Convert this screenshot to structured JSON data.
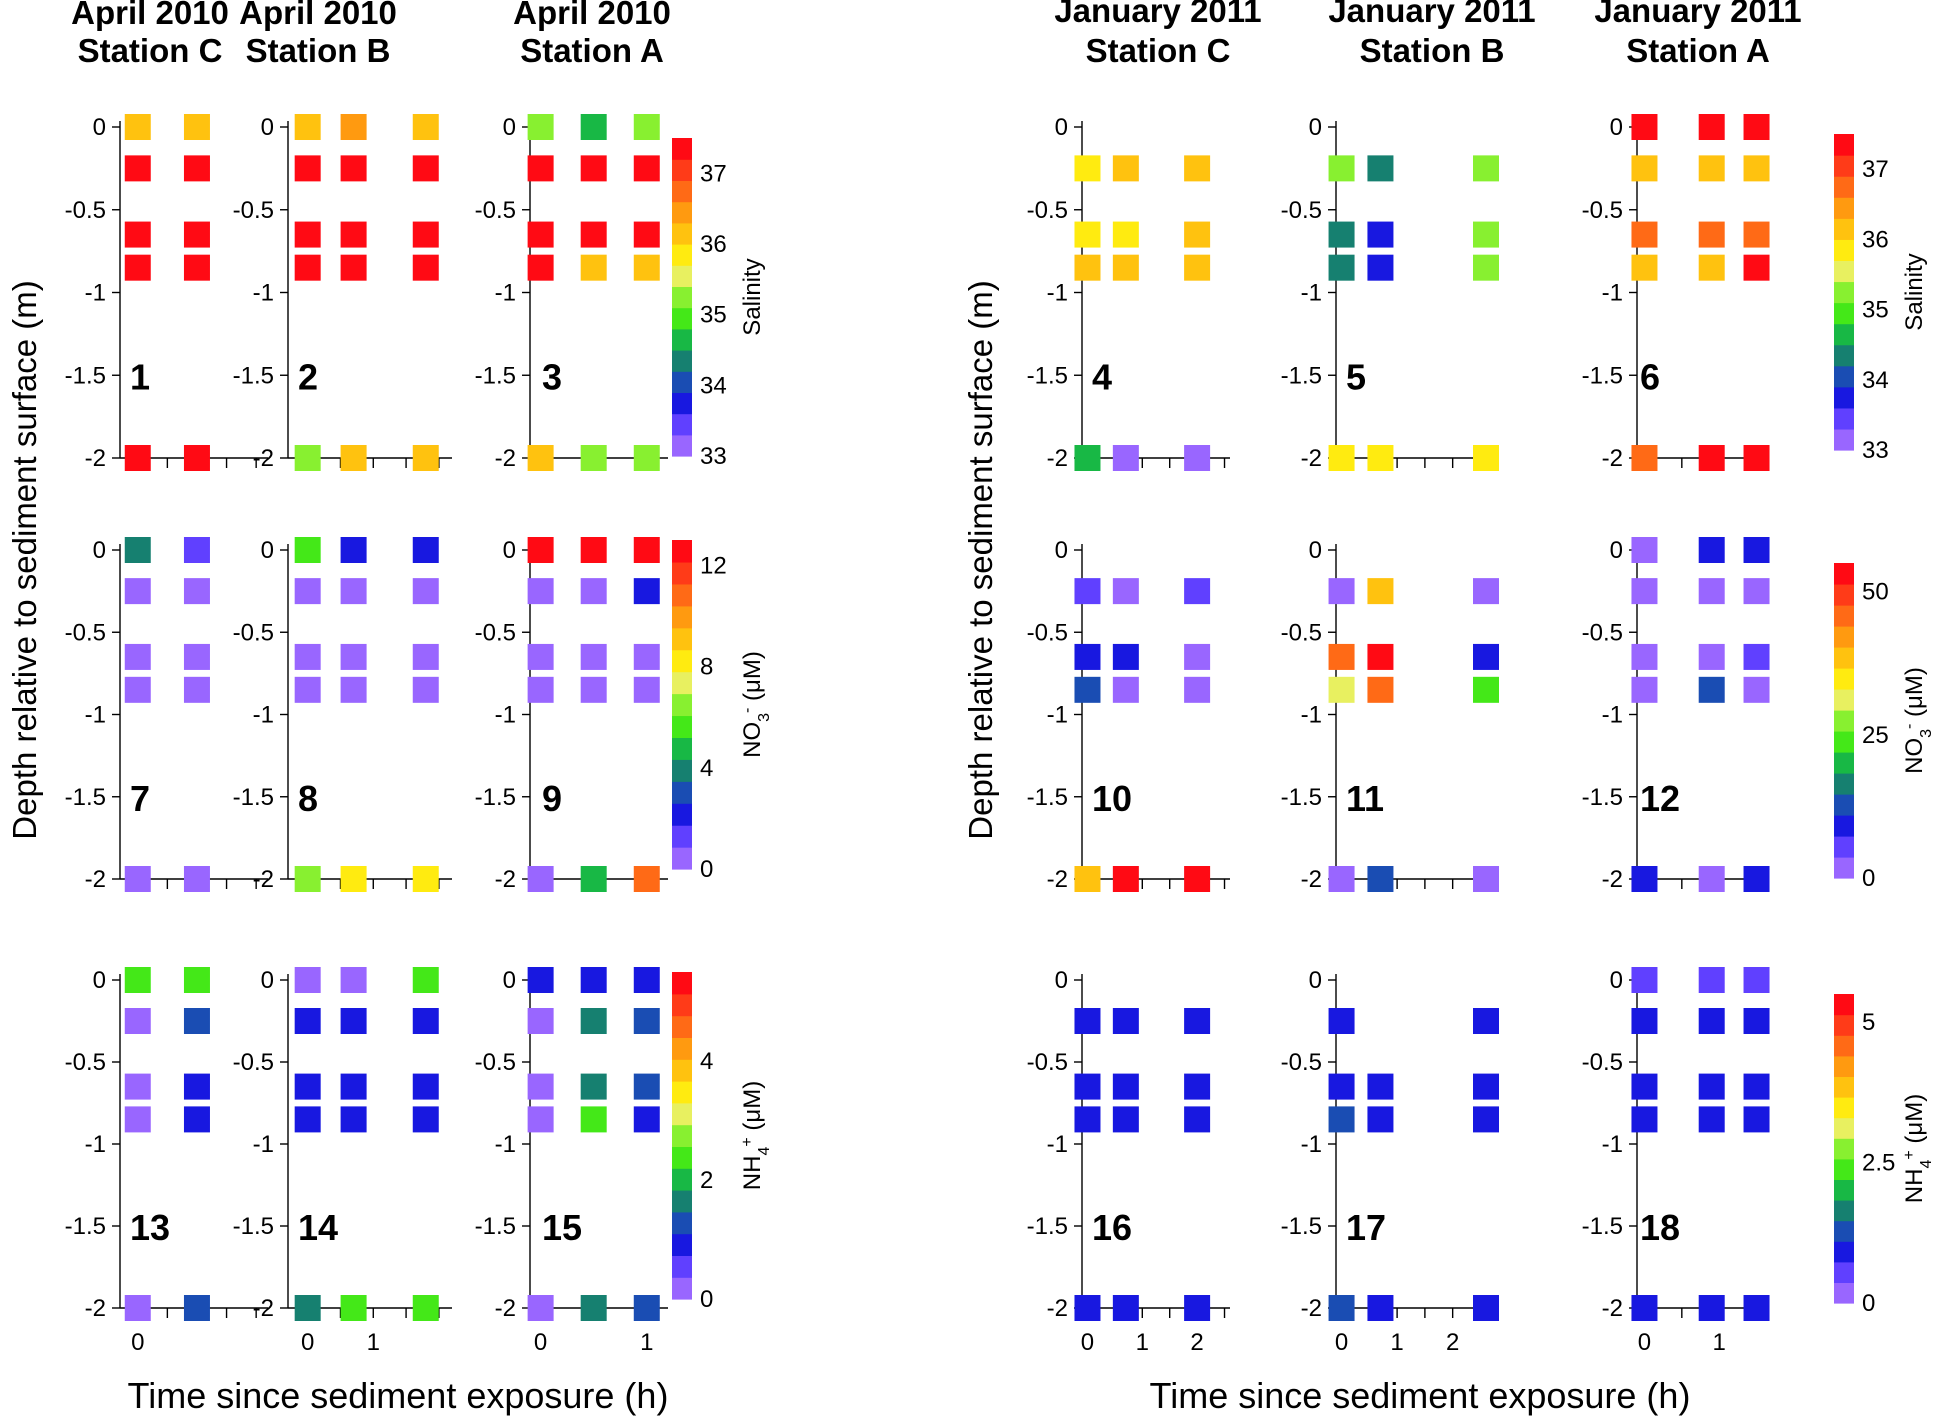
{
  "chart_data": {
    "type": "heatmap",
    "y_axis_label": "Depth relative to sediment surface (m)",
    "x_axis_label": "Time since sediment exposure (h)",
    "y_ticks": [
      "0",
      "-0.5",
      "-1",
      "-1.5",
      "-2"
    ],
    "depths": [
      0,
      -0.25,
      -0.65,
      -0.85,
      -2
    ],
    "ylim": [
      -2,
      0
    ],
    "groups": [
      {
        "id": "left",
        "x_axis_label": "Time since sediment exposure (h)",
        "columns": [
          {
            "title_line1": "April 2010",
            "title_line2": "Station C",
            "x_ticks": [
              "0"
            ],
            "xlim": [
              -0.3,
              2.2
            ]
          },
          {
            "title_line1": "April 2010",
            "title_line2": "Station B",
            "x_ticks": [
              "0",
              "1"
            ],
            "xlim": [
              -0.3,
              2.2
            ]
          },
          {
            "title_line1": "April 2010",
            "title_line2": "Station A",
            "x_ticks": [
              "0",
              "1"
            ],
            "xlim": [
              -0.1,
              1.2
            ]
          }
        ]
      },
      {
        "id": "right",
        "x_axis_label": "Time since sediment exposure (h)",
        "columns": [
          {
            "title_line1": "January 2011",
            "title_line2": "Station C",
            "x_ticks": [
              "0",
              "1",
              "2"
            ],
            "xlim": [
              -0.1,
              2.6
            ]
          },
          {
            "title_line1": "January 2011",
            "title_line2": "Station B",
            "x_ticks": [
              "0",
              "1",
              "2"
            ],
            "xlim": [
              -0.1,
              2.6
            ]
          },
          {
            "title_line1": "January 2011",
            "title_line2": "Station A",
            "x_ticks": [
              "0",
              "1"
            ],
            "xlim": [
              -0.1,
              1.6
            ]
          }
        ]
      }
    ],
    "variables": [
      {
        "name": "Salinity",
        "label": "Salinity"
      },
      {
        "name": "NO3",
        "label": "NO",
        "label_sub": "3",
        "label_sup": "-",
        "label_unit": " (μM)"
      },
      {
        "name": "NH4",
        "label": "NH",
        "label_sub": "4",
        "label_sup": "+",
        "label_unit": " (μM)"
      }
    ],
    "colorbars": [
      {
        "group": "left",
        "variable": "Salinity",
        "min": 33,
        "max": 37.5,
        "ticks": [
          "33",
          "34",
          "35",
          "36",
          "37"
        ]
      },
      {
        "group": "left",
        "variable": "NO3",
        "min": 0,
        "max": 13,
        "ticks": [
          "0",
          "4",
          "8",
          "12"
        ]
      },
      {
        "group": "left",
        "variable": "NH4",
        "min": 0,
        "max": 5.5,
        "ticks": [
          "0",
          "2",
          "4"
        ]
      },
      {
        "group": "right",
        "variable": "Salinity",
        "min": 33,
        "max": 37.5,
        "ticks": [
          "33",
          "34",
          "35",
          "36",
          "37"
        ]
      },
      {
        "group": "right",
        "variable": "NO3",
        "min": 0,
        "max": 55,
        "ticks": [
          "0",
          "25",
          "50"
        ]
      },
      {
        "group": "right",
        "variable": "NH4",
        "min": 0,
        "max": 5.5,
        "ticks": [
          "0",
          "2.5",
          "5"
        ]
      }
    ],
    "panels": [
      {
        "n": "1",
        "group": "left",
        "col": 0,
        "variable": "Salinity",
        "times": [
          0,
          1
        ],
        "values": [
          [
            36.3,
            36.3
          ],
          [
            37.3,
            37.3
          ],
          [
            37.3,
            37.3
          ],
          [
            37.3,
            37.3
          ],
          [
            37.3,
            37.3
          ]
        ]
      },
      {
        "n": "2",
        "group": "left",
        "col": 1,
        "variable": "Salinity",
        "times": [
          0,
          0.7,
          1.8
        ],
        "values": [
          [
            36.3,
            36.5,
            36.3
          ],
          [
            37.3,
            37.3,
            37.3
          ],
          [
            37.3,
            37.3,
            37.3
          ],
          [
            37.3,
            37.3,
            37.3
          ],
          [
            35.3,
            36.3,
            36.3
          ]
        ]
      },
      {
        "n": "3",
        "group": "left",
        "col": 2,
        "variable": "Salinity",
        "times": [
          0,
          0.5,
          1
        ],
        "values": [
          [
            35.3,
            34.8,
            35.3
          ],
          [
            37.3,
            37.3,
            37.3
          ],
          [
            37.3,
            37.3,
            37.3
          ],
          [
            37.3,
            36.3,
            36.3
          ],
          [
            36.3,
            35.3,
            35.3
          ]
        ]
      },
      {
        "n": "7",
        "group": "left",
        "col": 0,
        "variable": "NO3",
        "times": [
          0,
          1
        ],
        "values": [
          [
            3.5,
            1.2
          ],
          [
            0.5,
            0.5
          ],
          [
            0.5,
            0.5
          ],
          [
            0.5,
            0.5
          ],
          [
            0.5,
            0.5
          ]
        ]
      },
      {
        "n": "8",
        "group": "left",
        "col": 1,
        "variable": "NO3",
        "times": [
          0,
          0.7,
          1.8
        ],
        "values": [
          [
            5.5,
            2.5,
            2.5
          ],
          [
            0.5,
            0.5,
            0.5
          ],
          [
            0.5,
            0.5,
            0.5
          ],
          [
            0.5,
            0.5,
            0.5
          ],
          [
            6.5,
            8.5,
            8.5
          ]
        ]
      },
      {
        "n": "9",
        "group": "left",
        "col": 2,
        "variable": "NO3",
        "times": [
          0,
          0.5,
          1
        ],
        "values": [
          [
            12.5,
            12.5,
            12.5
          ],
          [
            0.5,
            0.5,
            2.5
          ],
          [
            0.5,
            0.5,
            0.5
          ],
          [
            0.5,
            0.5,
            0.5
          ],
          [
            0.5,
            4.5,
            10.5
          ]
        ]
      },
      {
        "n": "13",
        "group": "left",
        "col": 0,
        "variable": "NH4",
        "times": [
          0,
          1
        ],
        "values": [
          [
            2.5,
            2.3
          ],
          [
            0.25,
            1.25
          ],
          [
            0.25,
            0.75
          ],
          [
            0.25,
            0.75
          ],
          [
            0.25,
            1.25
          ]
        ]
      },
      {
        "n": "14",
        "group": "left",
        "col": 1,
        "variable": "NH4",
        "times": [
          0,
          0.7,
          1.8
        ],
        "values": [
          [
            0.25,
            0.25,
            2.5
          ],
          [
            0.75,
            0.75,
            0.75
          ],
          [
            0.75,
            0.75,
            0.75
          ],
          [
            0.75,
            0.75,
            0.75
          ],
          [
            1.6,
            2.25,
            2.25
          ]
        ]
      },
      {
        "n": "15",
        "group": "left",
        "col": 2,
        "variable": "NH4",
        "times": [
          0,
          0.5,
          1
        ],
        "values": [
          [
            0.75,
            0.75,
            0.75
          ],
          [
            0.25,
            1.6,
            1.25
          ],
          [
            0.25,
            1.6,
            1.25
          ],
          [
            0.25,
            2.3,
            0.75
          ],
          [
            0.25,
            1.6,
            1.25
          ]
        ]
      },
      {
        "n": "4",
        "group": "right",
        "col": 0,
        "variable": "Salinity",
        "times": [
          0,
          0.7,
          2
        ],
        "values": [
          [
            null,
            null,
            null
          ],
          [
            35.7,
            36.3,
            36.3
          ],
          [
            35.7,
            35.7,
            36.3
          ],
          [
            36.3,
            36.3,
            36.3
          ],
          [
            34.7,
            33.3,
            33.3
          ]
        ]
      },
      {
        "n": "5",
        "group": "right",
        "col": 1,
        "variable": "Salinity",
        "times": [
          0,
          0.7,
          2.6
        ],
        "values": [
          [
            null,
            null,
            null
          ],
          [
            35.3,
            34.2,
            35.3
          ],
          [
            34.2,
            33.8,
            35.3
          ],
          [
            34.2,
            33.8,
            35.3
          ],
          [
            35.7,
            35.7,
            35.7
          ]
        ]
      },
      {
        "n": "6",
        "group": "right",
        "col": 2,
        "variable": "Salinity",
        "times": [
          0,
          0.9,
          1.5
        ],
        "values": [
          [
            37.3,
            37.3,
            37.3
          ],
          [
            36.3,
            36.3,
            36.3
          ],
          [
            36.8,
            36.8,
            36.8
          ],
          [
            36.3,
            36.3,
            37.3
          ],
          [
            36.8,
            37.3,
            37.3
          ]
        ]
      },
      {
        "n": "10",
        "group": "right",
        "col": 0,
        "variable": "NO3",
        "times": [
          0,
          0.7,
          2
        ],
        "values": [
          [
            null,
            null,
            null
          ],
          [
            5,
            3,
            5
          ],
          [
            8,
            8,
            3
          ],
          [
            13,
            3,
            3
          ],
          [
            37,
            53,
            53
          ]
        ]
      },
      {
        "n": "11",
        "group": "right",
        "col": 1,
        "variable": "NO3",
        "times": [
          0,
          0.7,
          2.6
        ],
        "values": [
          [
            null,
            null,
            null
          ],
          [
            3,
            40,
            3
          ],
          [
            47,
            53,
            8
          ],
          [
            32,
            45,
            23
          ],
          [
            3,
            13,
            3
          ]
        ]
      },
      {
        "n": "12",
        "group": "right",
        "col": 2,
        "variable": "NO3",
        "times": [
          0,
          0.9,
          1.5
        ],
        "values": [
          [
            3,
            8,
            8
          ],
          [
            3,
            3,
            3
          ],
          [
            3,
            3,
            5
          ],
          [
            3,
            13,
            3
          ],
          [
            8,
            3,
            8
          ]
        ]
      },
      {
        "n": "16",
        "group": "right",
        "col": 0,
        "variable": "NH4",
        "times": [
          0,
          0.7,
          2
        ],
        "values": [
          [
            null,
            null,
            null
          ],
          [
            0.8,
            0.8,
            0.8
          ],
          [
            0.8,
            0.8,
            0.8
          ],
          [
            0.8,
            0.8,
            0.8
          ],
          [
            0.8,
            0.8,
            0.8
          ]
        ]
      },
      {
        "n": "17",
        "group": "right",
        "col": 1,
        "variable": "NH4",
        "times": [
          0,
          0.7,
          2.6
        ],
        "values": [
          [
            null,
            null,
            null
          ],
          [
            0.8,
            null,
            0.8
          ],
          [
            0.8,
            0.8,
            0.8
          ],
          [
            1.3,
            0.8,
            0.8
          ],
          [
            1.2,
            0.8,
            0.8
          ]
        ]
      },
      {
        "n": "18",
        "group": "right",
        "col": 2,
        "variable": "NH4",
        "times": [
          0,
          0.9,
          1.5
        ],
        "values": [
          [
            0.6,
            0.6,
            0.6
          ],
          [
            0.8,
            0.8,
            0.8
          ],
          [
            0.8,
            0.8,
            0.8
          ],
          [
            0.8,
            0.8,
            0.8
          ],
          [
            0.8,
            0.8,
            0.8
          ]
        ]
      }
    ]
  }
}
